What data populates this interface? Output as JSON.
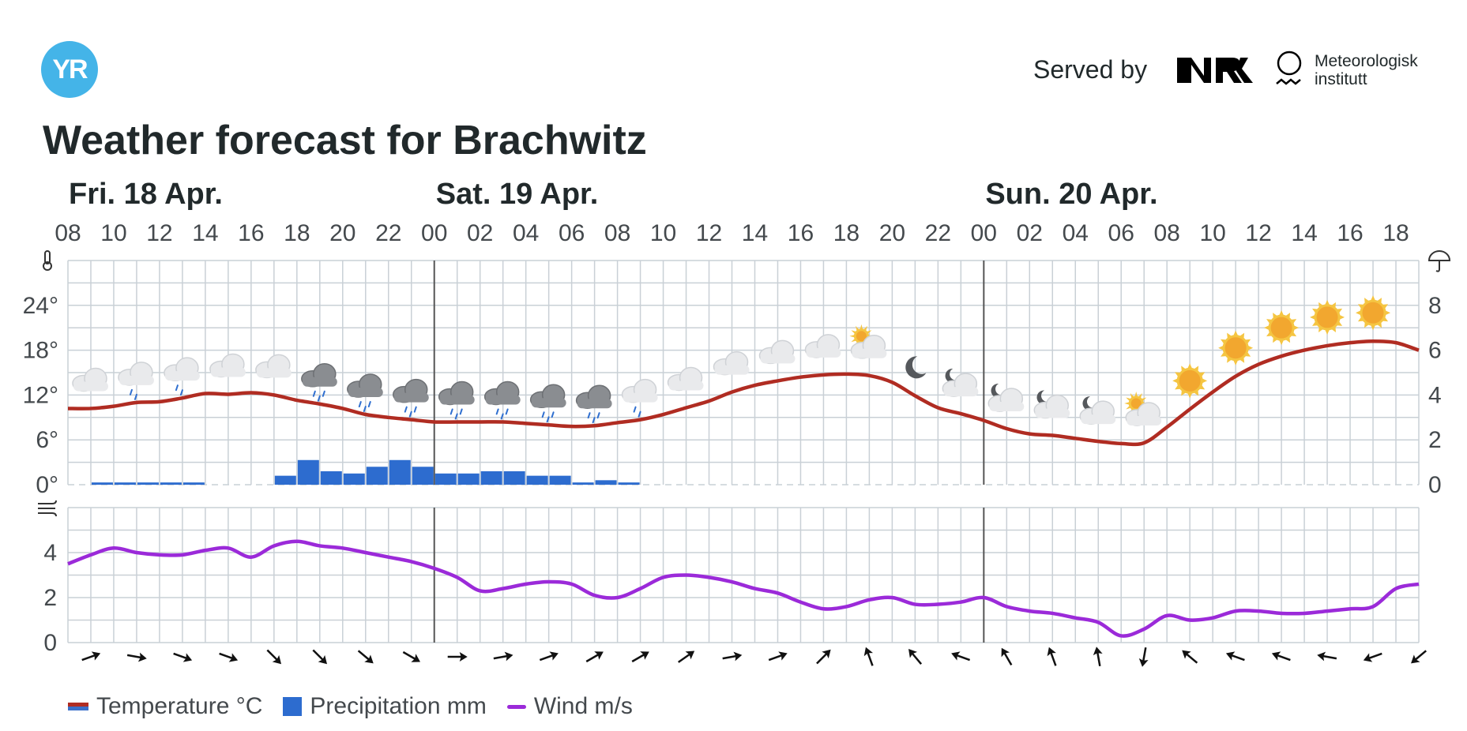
{
  "header": {
    "logo_text": "YR",
    "served_by": "Served by",
    "met_line1": "Meteorologisk",
    "met_line2": "institutt",
    "nrk_icon": "nrk-logo-icon",
    "met_icon": "met-institute-logo-icon"
  },
  "title": "Weather forecast for Brachwitz",
  "colors": {
    "temperature": "#b02c22",
    "temperature_cold": "#3b6fc9",
    "precipitation": "#2d6ccf",
    "wind": "#9b2ad9",
    "grid": "#c9d0d6",
    "logo": "#44b4e8"
  },
  "legend": {
    "temperature": "Temperature °C",
    "precipitation": "Precipitation mm",
    "wind": "Wind m/s"
  },
  "chart_data": {
    "type": "line",
    "days": [
      {
        "label": "Fri. 18 Apr.",
        "start_hour_index": 0
      },
      {
        "label": "Sat. 19 Apr.",
        "start_hour_index": 16
      },
      {
        "label": "Sun. 20 Apr.",
        "start_hour_index": 40
      }
    ],
    "hour_labels": [
      "08",
      "10",
      "12",
      "14",
      "16",
      "18",
      "20",
      "22",
      "00",
      "02",
      "04",
      "06",
      "08",
      "10",
      "12",
      "14",
      "16",
      "18",
      "20",
      "22",
      "00",
      "02",
      "04",
      "06",
      "08",
      "10",
      "12",
      "14",
      "16",
      "18"
    ],
    "x_hours_from_start": [
      0,
      1,
      2,
      3,
      4,
      5,
      6,
      7,
      8,
      9,
      10,
      11,
      12,
      13,
      14,
      15,
      16,
      17,
      18,
      19,
      20,
      21,
      22,
      23,
      24,
      25,
      26,
      27,
      28,
      29,
      30,
      31,
      32,
      33,
      34,
      35,
      36,
      37,
      38,
      39,
      40,
      41,
      42,
      43,
      44,
      45,
      46,
      47,
      48,
      49,
      50,
      51,
      52,
      53,
      54,
      55,
      56,
      57,
      58,
      59
    ],
    "temperature": {
      "name": "Temperature °C",
      "ylim": [
        0,
        30
      ],
      "ticks": [
        "0°",
        "6°",
        "12°",
        "18°",
        "24°"
      ],
      "tick_values": [
        0,
        6,
        12,
        18,
        24
      ],
      "values": [
        10.2,
        10.2,
        10.5,
        11.0,
        11.1,
        11.6,
        12.2,
        12.1,
        12.3,
        12.0,
        11.3,
        10.8,
        10.2,
        9.4,
        9.0,
        8.7,
        8.4,
        8.4,
        8.4,
        8.4,
        8.2,
        8.0,
        7.8,
        7.9,
        8.3,
        8.7,
        9.4,
        10.3,
        11.2,
        12.4,
        13.3,
        13.9,
        14.4,
        14.7,
        14.8,
        14.6,
        13.7,
        11.9,
        10.3,
        9.5,
        8.6,
        7.5,
        6.8,
        6.6,
        6.2,
        5.8,
        5.5,
        5.6,
        7.7,
        10.1,
        12.4,
        14.5,
        16.1,
        17.2,
        18.0,
        18.6,
        19.0,
        19.2,
        19.0,
        18.0
      ]
    },
    "precipitation": {
      "name": "Precipitation mm",
      "ylim": [
        0,
        10
      ],
      "ticks": [
        "0",
        "2",
        "4",
        "6",
        "8"
      ],
      "tick_values": [
        0,
        2,
        4,
        6,
        8
      ],
      "values": [
        0,
        0.1,
        0.1,
        0.1,
        0.1,
        0.1,
        0,
        0,
        0,
        0.4,
        1.1,
        0.6,
        0.5,
        0.8,
        1.1,
        0.8,
        0.5,
        0.5,
        0.6,
        0.6,
        0.4,
        0.4,
        0.1,
        0.2,
        0.1,
        0,
        0,
        0,
        0,
        0,
        0,
        0,
        0,
        0,
        0,
        0,
        0,
        0,
        0,
        0,
        0,
        0,
        0,
        0,
        0,
        0,
        0,
        0,
        0,
        0,
        0,
        0,
        0,
        0,
        0,
        0,
        0,
        0,
        0,
        0
      ]
    },
    "wind": {
      "name": "Wind m/s",
      "ylim": [
        0,
        6
      ],
      "ticks": [
        "0",
        "2",
        "4"
      ],
      "tick_values": [
        0,
        2,
        4
      ],
      "values": [
        3.5,
        3.9,
        4.2,
        4.0,
        3.9,
        3.9,
        4.1,
        4.2,
        3.8,
        4.3,
        4.5,
        4.3,
        4.2,
        4.0,
        3.8,
        3.6,
        3.3,
        2.9,
        2.3,
        2.4,
        2.6,
        2.7,
        2.6,
        2.1,
        2.0,
        2.4,
        2.9,
        3.0,
        2.9,
        2.7,
        2.4,
        2.2,
        1.8,
        1.5,
        1.6,
        1.9,
        2.0,
        1.7,
        1.7,
        1.8,
        2.0,
        1.6,
        1.4,
        1.3,
        1.1,
        0.9,
        0.3,
        0.6,
        1.2,
        1.0,
        1.1,
        1.4,
        1.4,
        1.3,
        1.3,
        1.4,
        1.5,
        1.6,
        2.4,
        2.6
      ]
    },
    "wind_directions_deg_toward": [
      70,
      100,
      110,
      110,
      135,
      135,
      130,
      120,
      90,
      80,
      70,
      60,
      60,
      55,
      80,
      70,
      45,
      340,
      320,
      290,
      330,
      340,
      350,
      190,
      310,
      290,
      290,
      280,
      250,
      230
    ],
    "weather_symbols": [
      "cloudy",
      "light-rain-showers",
      "light-rain-showers",
      "cloudy",
      "cloudy",
      "rain",
      "rain",
      "rain",
      "rain",
      "rain",
      "rain",
      "rain",
      "light-rain",
      "cloudy",
      "cloudy",
      "cloudy",
      "cloudy",
      "partly-cloudy-day",
      "clear-night",
      "partly-cloudy-night",
      "partly-cloudy-night",
      "partly-cloudy-night",
      "partly-cloudy-night",
      "partly-cloudy-day",
      "clear-day",
      "clear-day",
      "clear-day",
      "clear-day",
      "clear-day"
    ],
    "grid": true,
    "legend_position": "bottom-left"
  }
}
